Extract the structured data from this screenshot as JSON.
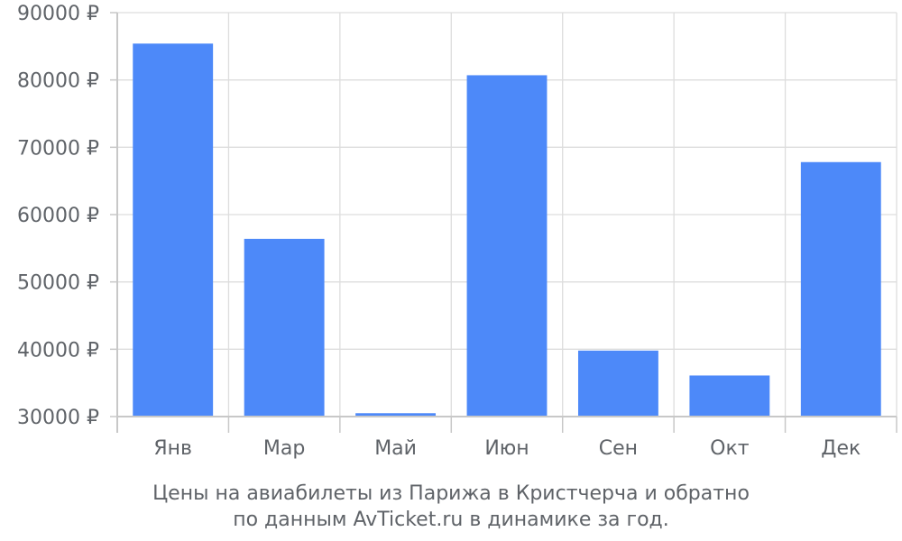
{
  "chart_data": {
    "type": "bar",
    "categories": [
      "Янв",
      "Мар",
      "Май",
      "Июн",
      "Сен",
      "Окт",
      "Дек"
    ],
    "values": [
      85400,
      56400,
      30500,
      80700,
      39800,
      36100,
      67800
    ],
    "ylim": [
      30000,
      90000
    ],
    "yticks": [
      30000,
      40000,
      50000,
      60000,
      70000,
      80000,
      90000
    ],
    "y_tick_suffix": " ₽",
    "bar_color": "#4d89f9",
    "grid": true,
    "caption_line1": "Цены на авиабилеты из Парижа в Кристчерча и обратно",
    "caption_line2": "по данным AvTicket.ru в динамике за год."
  }
}
